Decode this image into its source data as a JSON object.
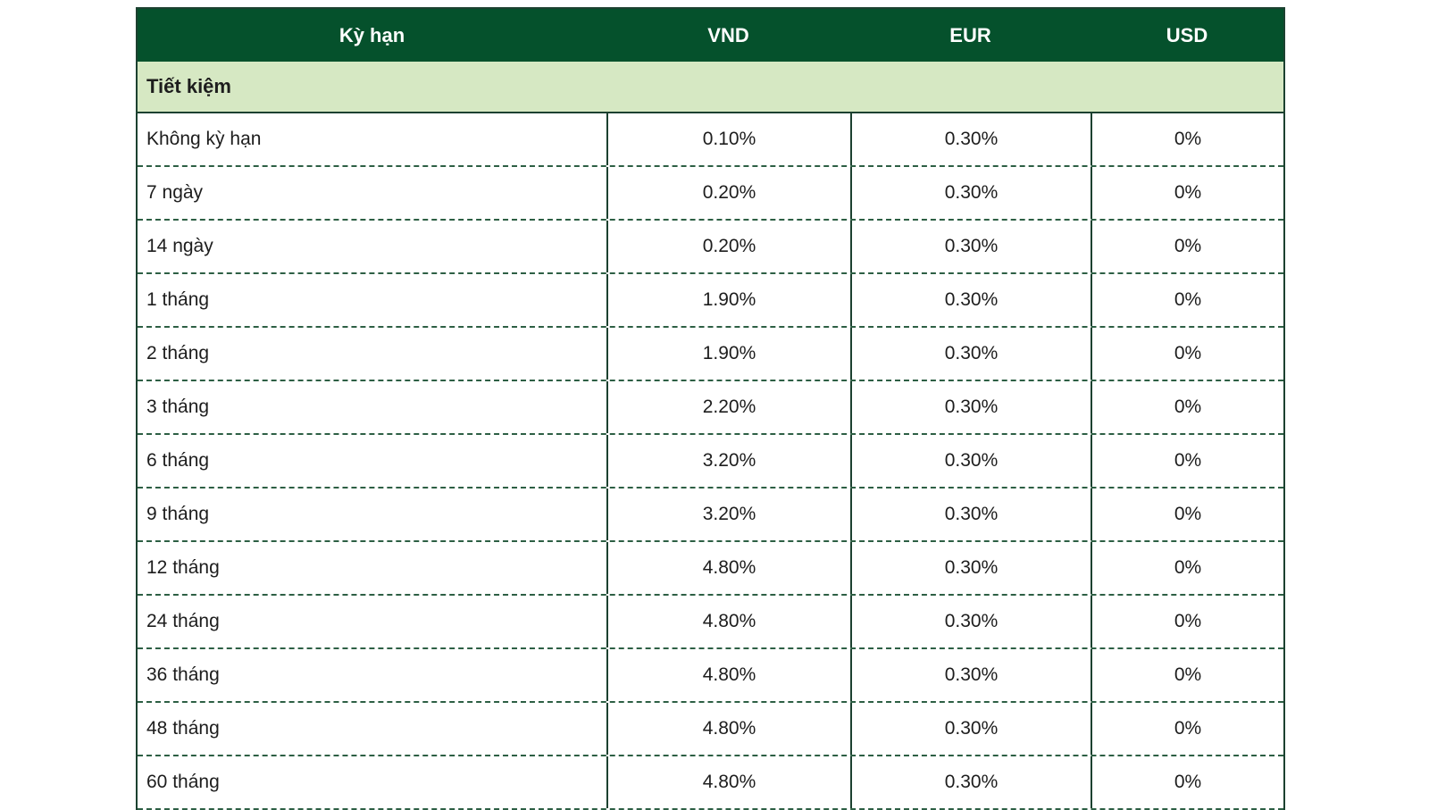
{
  "table": {
    "columns": [
      {
        "key": "term",
        "label": "Kỳ hạn"
      },
      {
        "key": "vnd",
        "label": "VND"
      },
      {
        "key": "eur",
        "label": "EUR"
      },
      {
        "key": "usd",
        "label": "USD"
      }
    ],
    "group_label": "Tiết kiệm",
    "rows": [
      {
        "term": "Không kỳ hạn",
        "vnd": "0.10%",
        "eur": "0.30%",
        "usd": "0%"
      },
      {
        "term": "7 ngày",
        "vnd": "0.20%",
        "eur": "0.30%",
        "usd": "0%"
      },
      {
        "term": "14 ngày",
        "vnd": "0.20%",
        "eur": "0.30%",
        "usd": "0%"
      },
      {
        "term": "1 tháng",
        "vnd": "1.90%",
        "eur": "0.30%",
        "usd": "0%"
      },
      {
        "term": "2 tháng",
        "vnd": "1.90%",
        "eur": "0.30%",
        "usd": "0%"
      },
      {
        "term": "3 tháng",
        "vnd": "2.20%",
        "eur": "0.30%",
        "usd": "0%"
      },
      {
        "term": "6 tháng",
        "vnd": "3.20%",
        "eur": "0.30%",
        "usd": "0%"
      },
      {
        "term": "9 tháng",
        "vnd": "3.20%",
        "eur": "0.30%",
        "usd": "0%"
      },
      {
        "term": "12 tháng",
        "vnd": "4.80%",
        "eur": "0.30%",
        "usd": "0%"
      },
      {
        "term": "24 tháng",
        "vnd": "4.80%",
        "eur": "0.30%",
        "usd": "0%"
      },
      {
        "term": "36 tháng",
        "vnd": "4.80%",
        "eur": "0.30%",
        "usd": "0%"
      },
      {
        "term": "48 tháng",
        "vnd": "4.80%",
        "eur": "0.30%",
        "usd": "0%"
      },
      {
        "term": "60 tháng",
        "vnd": "4.80%",
        "eur": "0.30%",
        "usd": "0%"
      }
    ],
    "colors": {
      "header_bg": "#05512c",
      "group_bg": "#d6e8c3",
      "header_text": "#ffffff",
      "body_text": "#1d1d1d",
      "border_solid": "#1c4130",
      "border_dashed": "#2d5f44"
    }
  }
}
